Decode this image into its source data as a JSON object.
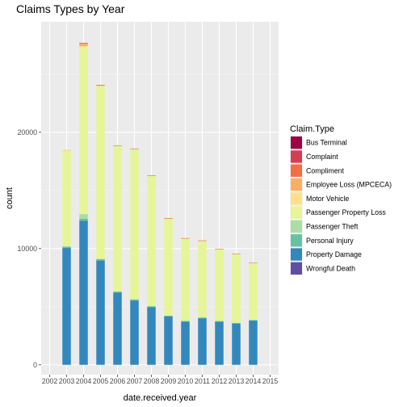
{
  "chart_data": {
    "type": "bar",
    "stacked": true,
    "title": "Claims Types by Year",
    "xlabel": "date.received.year",
    "ylabel": "count",
    "x_ticks": [
      "2002",
      "2003",
      "2004",
      "2005",
      "2006",
      "2007",
      "2008",
      "2009",
      "2010",
      "2011",
      "2012",
      "2013",
      "2014",
      "2015"
    ],
    "y_ticks": [
      0,
      10000,
      20000
    ],
    "ylim": [
      -850,
      29500
    ],
    "legend_title": "Claim.Type",
    "legend_position": "right",
    "grid": true,
    "background": "#ebebeb",
    "series": [
      {
        "name": "Bus Terminal",
        "color": "#9e0142",
        "values": [
          0,
          0,
          0,
          0,
          0,
          0,
          0,
          0,
          0,
          0,
          0,
          0,
          0,
          0
        ]
      },
      {
        "name": "Complaint",
        "color": "#d53e4f",
        "values": [
          0,
          0,
          20,
          10,
          5,
          5,
          5,
          5,
          5,
          5,
          5,
          5,
          5,
          0
        ]
      },
      {
        "name": "Compliment",
        "color": "#f46d43",
        "values": [
          0,
          0,
          5,
          0,
          0,
          0,
          0,
          0,
          0,
          0,
          0,
          0,
          0,
          0
        ]
      },
      {
        "name": "Employee Loss (MPCECA)",
        "color": "#fdae61",
        "values": [
          0,
          20,
          260,
          80,
          20,
          15,
          15,
          10,
          5,
          5,
          5,
          5,
          5,
          0
        ]
      },
      {
        "name": "Motor Vehicle",
        "color": "#fee08b",
        "values": [
          0,
          30,
          40,
          40,
          25,
          20,
          20,
          15,
          10,
          10,
          10,
          10,
          5,
          0
        ]
      },
      {
        "name": "Passenger Property Loss",
        "color": "#e6f598",
        "values": [
          0,
          8250,
          14400,
          14850,
          12500,
          12900,
          11200,
          8350,
          7100,
          6600,
          6200,
          5900,
          4900,
          0
        ]
      },
      {
        "name": "Passenger Theft",
        "color": "#abdda4",
        "values": [
          0,
          0,
          400,
          0,
          0,
          0,
          0,
          0,
          0,
          0,
          0,
          0,
          0,
          0
        ]
      },
      {
        "name": "Personal Injury",
        "color": "#66c2a5",
        "values": [
          0,
          120,
          160,
          130,
          100,
          100,
          90,
          80,
          75,
          70,
          65,
          60,
          55,
          0
        ]
      },
      {
        "name": "Property Damage",
        "color": "#3288bd",
        "values": [
          0,
          10050,
          12400,
          8970,
          6200,
          5530,
          4950,
          4150,
          3700,
          4000,
          3700,
          3550,
          3800,
          0
        ]
      },
      {
        "name": "Wrongful Death",
        "color": "#5e4fa2",
        "values": [
          0,
          0,
          0,
          0,
          0,
          0,
          0,
          0,
          0,
          0,
          0,
          0,
          0,
          0
        ]
      }
    ]
  }
}
